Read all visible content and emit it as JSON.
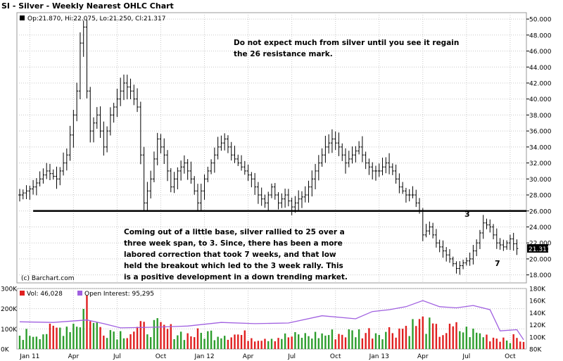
{
  "title": "SI - Silver - Weekly Nearest OHLC Chart",
  "legend_price": "Op:21.870, Hi:22.075, Lo:21.250, Cl:21.317",
  "last_price": "21.317",
  "watermark": "(c) Barchart.com",
  "annotation_top": [
    "Do not expect much from silver until you see it regain",
    "the 26 resistance mark."
  ],
  "annotation_body": [
    "Coming out of a little base, silver rallied to 25 over a",
    "three week span, to 3.  Since, there has been a more",
    "labored correction that took 7 weeks, and that low",
    "held the breakout which led to the 3 week rally.  This",
    "is a positive development in a down trending market."
  ],
  "marker_3": "3",
  "marker_7": "7",
  "vol_legend": "Vol: 46,028",
  "oi_legend": "Open Interest: 95,295",
  "colors": {
    "background": "#ffffff",
    "panel_border": "#999999",
    "grid": "#c8c8c8",
    "bars": "#000000",
    "vol_up": "#2e9e2e",
    "vol_down": "#e02020",
    "open_interest": "#a060e0",
    "resistance": "#000000",
    "last_price_box": "#000000"
  },
  "chart_data": [
    {
      "type": "ohlc",
      "title": "SI - Silver - Weekly Nearest OHLC Chart",
      "ylim": [
        17,
        50.8
      ],
      "y_ticks": [
        "18.000",
        "20.000",
        "22.000",
        "24.000",
        "26.000",
        "28.000",
        "30.000",
        "32.000",
        "34.000",
        "36.000",
        "38.000",
        "40.000",
        "42.000",
        "44.000",
        "46.000",
        "48.000",
        "50.000"
      ],
      "y_tick_values": [
        18,
        20,
        22,
        24,
        26,
        28,
        30,
        32,
        34,
        36,
        38,
        40,
        42,
        44,
        46,
        48,
        50
      ],
      "x_ticks": [
        "Jan 11",
        "Apr",
        "Jul",
        "Oct",
        "Jan 12",
        "Apr",
        "Jul",
        "Oct",
        "Jan 13",
        "Apr",
        "Jul",
        "Oct"
      ],
      "x_tick_weeks": [
        3,
        16,
        29,
        42,
        55,
        68,
        81,
        94,
        107,
        120,
        133,
        146
      ],
      "resistance_level": 26,
      "close_path": [
        [
          0,
          28
        ],
        [
          4,
          29
        ],
        [
          8,
          31
        ],
        [
          11,
          30
        ],
        [
          14,
          33
        ],
        [
          16,
          38
        ],
        [
          17,
          41
        ],
        [
          18,
          47
        ],
        [
          19,
          49
        ],
        [
          20,
          41
        ],
        [
          21,
          36
        ],
        [
          23,
          38
        ],
        [
          25,
          34
        ],
        [
          27,
          38
        ],
        [
          29,
          40
        ],
        [
          31,
          42
        ],
        [
          33,
          41
        ],
        [
          35,
          39
        ],
        [
          37,
          27
        ],
        [
          39,
          30
        ],
        [
          41,
          35
        ],
        [
          43,
          33
        ],
        [
          45,
          29
        ],
        [
          47,
          31
        ],
        [
          49,
          32
        ],
        [
          51,
          30
        ],
        [
          53,
          27
        ],
        [
          55,
          30
        ],
        [
          57,
          32
        ],
        [
          59,
          34
        ],
        [
          61,
          35
        ],
        [
          63,
          33
        ],
        [
          65,
          32
        ],
        [
          67,
          31
        ],
        [
          69,
          30
        ],
        [
          71,
          28
        ],
        [
          73,
          27
        ],
        [
          75,
          29
        ],
        [
          77,
          27
        ],
        [
          79,
          28
        ],
        [
          81,
          26.5
        ],
        [
          83,
          27.5
        ],
        [
          85,
          28
        ],
        [
          87,
          30
        ],
        [
          89,
          32
        ],
        [
          91,
          34
        ],
        [
          93,
          35
        ],
        [
          95,
          34
        ],
        [
          97,
          32
        ],
        [
          99,
          33
        ],
        [
          101,
          34
        ],
        [
          103,
          32
        ],
        [
          105,
          31
        ],
        [
          107,
          31
        ],
        [
          109,
          32
        ],
        [
          111,
          31
        ],
        [
          113,
          29
        ],
        [
          115,
          28
        ],
        [
          117,
          28
        ],
        [
          119,
          26
        ],
        [
          120,
          23
        ],
        [
          122,
          24
        ],
        [
          124,
          22
        ],
        [
          126,
          21
        ],
        [
          128,
          20
        ],
        [
          130,
          18.8
        ],
        [
          132,
          19.5
        ],
        [
          134,
          20
        ],
        [
          136,
          22
        ],
        [
          138,
          24.5
        ],
        [
          140,
          24
        ],
        [
          142,
          22
        ],
        [
          144,
          21.5
        ],
        [
          146,
          22.5
        ],
        [
          148,
          21.3
        ]
      ],
      "last_close": 21.317
    },
    {
      "type": "bar",
      "title": "Volume / Open Interest",
      "vol_ylim": [
        0,
        300000
      ],
      "vol_ticks": [
        "0K",
        "100K",
        "200K",
        "300K"
      ],
      "vol_tick_values": [
        0,
        100000,
        200000,
        300000
      ],
      "oi_ylim": [
        80000,
        180000
      ],
      "oi_ticks": [
        "80K",
        "100K",
        "120K",
        "140K",
        "160K",
        "180K"
      ],
      "oi_tick_values": [
        80000,
        100000,
        120000,
        140000,
        160000,
        180000
      ],
      "last_volume": 46028,
      "last_open_interest": 95295,
      "oi_path": [
        [
          0,
          125000
        ],
        [
          10,
          124000
        ],
        [
          20,
          128000
        ],
        [
          25,
          122000
        ],
        [
          30,
          115000
        ],
        [
          40,
          116000
        ],
        [
          50,
          118000
        ],
        [
          60,
          124000
        ],
        [
          70,
          122000
        ],
        [
          80,
          123000
        ],
        [
          90,
          135000
        ],
        [
          100,
          130000
        ],
        [
          105,
          142000
        ],
        [
          110,
          145000
        ],
        [
          115,
          150000
        ],
        [
          120,
          160000
        ],
        [
          125,
          150000
        ],
        [
          130,
          148000
        ],
        [
          135,
          152000
        ],
        [
          140,
          145000
        ],
        [
          143,
          110000
        ],
        [
          148,
          112000
        ],
        [
          150,
          95295
        ]
      ],
      "vol_path": [
        [
          0,
          70000
        ],
        [
          10,
          90000
        ],
        [
          18,
          140000
        ],
        [
          20,
          250000
        ],
        [
          22,
          120000
        ],
        [
          30,
          80000
        ],
        [
          40,
          110000
        ],
        [
          50,
          70000
        ],
        [
          60,
          80000
        ],
        [
          70,
          60000
        ],
        [
          80,
          60000
        ],
        [
          90,
          70000
        ],
        [
          100,
          80000
        ],
        [
          110,
          90000
        ],
        [
          115,
          110000
        ],
        [
          120,
          130000
        ],
        [
          125,
          80000
        ],
        [
          130,
          100000
        ],
        [
          135,
          80000
        ],
        [
          140,
          60000
        ],
        [
          145,
          55000
        ],
        [
          150,
          46028
        ]
      ]
    }
  ]
}
